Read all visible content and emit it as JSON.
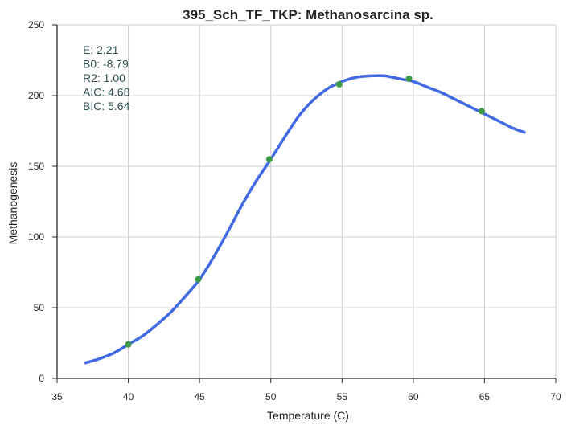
{
  "chart_data": {
    "type": "line",
    "title": "395_Sch_TF_TKP: Methanosarcina sp.",
    "xlabel": "Temperature (C)",
    "ylabel": "Methanogenesis",
    "xlim": [
      35,
      70
    ],
    "ylim": [
      0,
      250
    ],
    "xticks": [
      35,
      40,
      45,
      50,
      55,
      60,
      65,
      70
    ],
    "yticks": [
      0,
      50,
      100,
      150,
      200,
      250
    ],
    "grid": true,
    "series": [
      {
        "kind": "line",
        "color": "#4169e1",
        "x": [
          37.0,
          38.0,
          39.0,
          40.0,
          41.0,
          42.0,
          43.0,
          44.0,
          45.0,
          46.0,
          47.0,
          48.0,
          49.0,
          50.0,
          51.0,
          52.0,
          53.0,
          54.0,
          55.0,
          56.0,
          57.0,
          58.0,
          59.0,
          60.0,
          61.0,
          62.0,
          63.0,
          64.0,
          65.0,
          66.0,
          67.0,
          67.8
        ],
        "y": [
          11,
          14,
          18,
          24,
          30,
          38,
          47,
          58,
          70,
          86,
          104,
          123,
          140,
          155,
          171,
          186,
          197,
          205,
          210,
          213,
          214,
          214,
          212,
          210,
          206,
          202,
          197,
          192,
          187,
          182,
          177,
          174
        ]
      },
      {
        "kind": "scatter",
        "color": "#3d9b47",
        "x": [
          40.0,
          44.9,
          49.9,
          54.8,
          59.7,
          64.8
        ],
        "y": [
          24,
          70,
          155,
          208,
          212,
          189
        ]
      }
    ],
    "annotations": [
      "E:  2.21",
      "B0:  -8.79",
      "R2:  1.00",
      "AIC: 4.68",
      "BIC: 5.64"
    ],
    "annotation_color": "#2f4f4f"
  }
}
